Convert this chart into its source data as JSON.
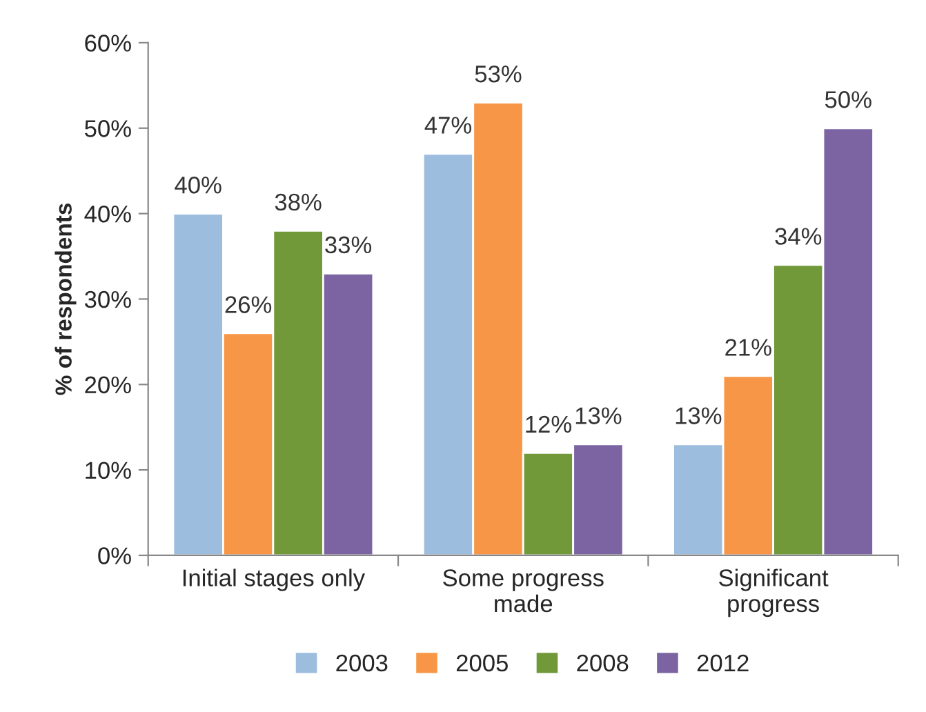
{
  "chart_data": {
    "type": "bar",
    "ylabel": "% of respondents",
    "categories": [
      "Initial stages only",
      "Some progress\nmade",
      "Significant\nprogress"
    ],
    "series": [
      {
        "name": "2003",
        "color": "#9dbddf",
        "values": [
          40,
          47,
          13
        ],
        "value_labels": [
          "40%",
          "47%",
          "13%"
        ]
      },
      {
        "name": "2005",
        "color": "#f79646",
        "values": [
          26,
          53,
          21
        ],
        "value_labels": [
          "26%",
          "53%",
          "21%"
        ]
      },
      {
        "name": "2008",
        "color": "#71993a",
        "values": [
          38,
          12,
          34
        ],
        "value_labels": [
          "38%",
          "12%",
          "34%"
        ]
      },
      {
        "name": "2012",
        "color": "#7c64a2",
        "values": [
          33,
          13,
          50
        ],
        "value_labels": [
          "33%",
          "13%",
          "50%"
        ]
      }
    ],
    "ylim": [
      0,
      60
    ],
    "yticks": [
      {
        "value": 0,
        "label": "0%"
      },
      {
        "value": 10,
        "label": "10%"
      },
      {
        "value": 20,
        "label": "20%"
      },
      {
        "value": 30,
        "label": "30%"
      },
      {
        "value": 40,
        "label": "40%"
      },
      {
        "value": 50,
        "label": "50%"
      },
      {
        "value": 60,
        "label": "60%"
      }
    ],
    "grid": false,
    "legend": "bottom"
  }
}
